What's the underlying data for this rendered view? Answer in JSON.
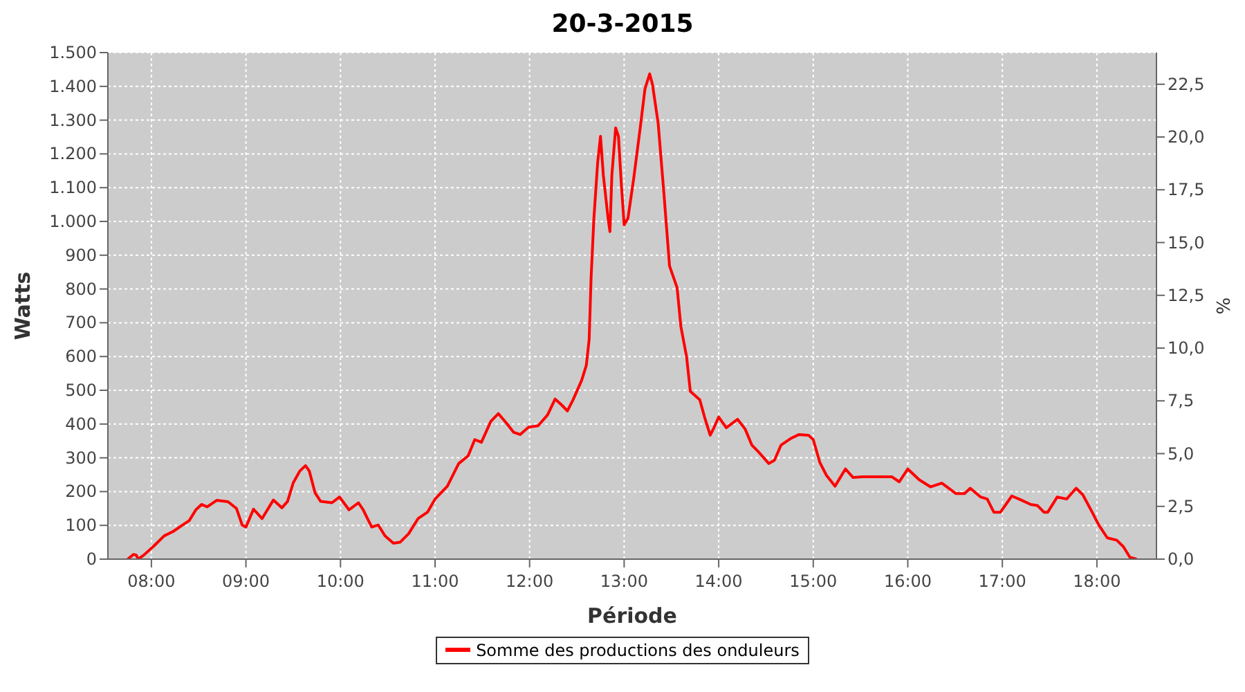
{
  "chart_data": {
    "type": "line",
    "title": "20-3-2015",
    "xlabel": "Période",
    "ylabel": "Watts",
    "y2label": "%",
    "x": [
      7.75,
      7.81,
      7.84,
      7.86,
      7.92,
      8.03,
      8.135,
      8.23,
      8.33,
      8.4,
      8.47,
      8.53,
      8.59,
      8.69,
      8.81,
      8.9,
      8.96,
      9.0,
      9.08,
      9.17,
      9.29,
      9.38,
      9.44,
      9.5,
      9.57,
      9.63,
      9.67,
      9.73,
      9.79,
      9.91,
      9.99,
      10.09,
      10.19,
      10.24,
      10.33,
      10.4,
      10.47,
      10.56,
      10.63,
      10.72,
      10.82,
      10.92,
      11.0,
      11.13,
      11.25,
      11.35,
      11.42,
      11.49,
      11.59,
      11.67,
      11.76,
      11.83,
      11.9,
      11.99,
      12.09,
      12.19,
      12.27,
      12.33,
      12.4,
      12.46,
      12.55,
      12.6,
      12.63,
      12.65,
      12.68,
      12.72,
      12.75,
      12.78,
      12.83,
      12.85,
      12.87,
      12.91,
      12.94,
      12.97,
      13.0,
      13.04,
      13.1,
      13.17,
      13.22,
      13.27,
      13.3,
      13.36,
      13.42,
      13.48,
      13.56,
      13.6,
      13.66,
      13.7,
      13.8,
      13.85,
      13.91,
      13.95,
      14.0,
      14.08,
      14.2,
      14.28,
      14.35,
      14.42,
      14.53,
      14.59,
      14.66,
      14.76,
      14.85,
      14.95,
      15.0,
      15.07,
      15.14,
      15.23,
      15.34,
      15.42,
      15.52,
      15.83,
      15.91,
      16.0,
      16.12,
      16.24,
      16.36,
      16.51,
      16.6,
      16.66,
      16.77,
      16.84,
      16.91,
      16.98,
      17.1,
      17.2,
      17.3,
      17.37,
      17.44,
      17.48,
      17.58,
      17.68,
      17.78,
      17.85,
      17.95,
      18.02,
      18.11,
      18.21,
      18.28,
      18.35,
      18.42
    ],
    "series": [
      {
        "name": "Somme des productions des onduleurs",
        "color": "#ff0000",
        "values": [
          0,
          14,
          12,
          0,
          12,
          40,
          69,
          82,
          101,
          114,
          146,
          162,
          155,
          174,
          170,
          150,
          101,
          95,
          148,
          120,
          175,
          152,
          171,
          226,
          261,
          277,
          261,
          197,
          171,
          167,
          184,
          146,
          167,
          146,
          95,
          101,
          69,
          47,
          50,
          75,
          120,
          139,
          178,
          216,
          283,
          306,
          354,
          346,
          408,
          431,
          401,
          376,
          369,
          391,
          395,
          427,
          474,
          459,
          439,
          472,
          529,
          574,
          651,
          830,
          1009,
          1175,
          1252,
          1137,
          1009,
          970,
          1137,
          1277,
          1252,
          1112,
          990,
          1009,
          1125,
          1277,
          1392,
          1437,
          1405,
          1290,
          1085,
          868,
          804,
          689,
          600,
          497,
          472,
          421,
          367,
          389,
          421,
          389,
          414,
          385,
          338,
          318,
          283,
          293,
          338,
          357,
          369,
          367,
          354,
          286,
          248,
          216,
          267,
          242,
          244,
          244,
          229,
          267,
          235,
          214,
          225,
          194,
          194,
          210,
          184,
          178,
          139,
          139,
          187,
          175,
          162,
          159,
          139,
          139,
          184,
          178,
          210,
          191,
          139,
          101,
          63,
          56,
          37,
          5,
          0
        ]
      }
    ],
    "xlim": [
      7.54,
      18.63
    ],
    "xticks": [
      {
        "value": 8,
        "label": "08:00"
      },
      {
        "value": 9,
        "label": "09:00"
      },
      {
        "value": 10,
        "label": "10:00"
      },
      {
        "value": 11,
        "label": "11:00"
      },
      {
        "value": 12,
        "label": "12:00"
      },
      {
        "value": 13,
        "label": "13:00"
      },
      {
        "value": 14,
        "label": "14:00"
      },
      {
        "value": 15,
        "label": "15:00"
      },
      {
        "value": 16,
        "label": "16:00"
      },
      {
        "value": 17,
        "label": "17:00"
      },
      {
        "value": 18,
        "label": "18:00"
      }
    ],
    "ylim": [
      0,
      1500
    ],
    "yticks": [
      0,
      100,
      200,
      300,
      400,
      500,
      600,
      700,
      800,
      900,
      {
        "value": 1000,
        "label": "1.000"
      },
      {
        "value": 1100,
        "label": "1.100"
      },
      {
        "value": 1200,
        "label": "1.200"
      },
      {
        "value": 1300,
        "label": "1.300"
      },
      {
        "value": 1400,
        "label": "1.400"
      },
      {
        "value": 1500,
        "label": "1.500"
      }
    ],
    "y2lim": [
      0,
      24
    ],
    "y2ticks": [
      {
        "value": 0,
        "label": "0,0"
      },
      {
        "value": 2.5,
        "label": "2,5"
      },
      {
        "value": 5,
        "label": "5,0"
      },
      {
        "value": 7.5,
        "label": "7,5"
      },
      {
        "value": 10,
        "label": "10,0"
      },
      {
        "value": 12.5,
        "label": "12,5"
      },
      {
        "value": 15,
        "label": "15,0"
      },
      {
        "value": 17.5,
        "label": "17,5"
      },
      {
        "value": 20,
        "label": "20,0"
      },
      {
        "value": 22.5,
        "label": "22,5"
      }
    ],
    "grid": true,
    "legend": "bottom",
    "marker": "none",
    "line_style": "solid"
  }
}
